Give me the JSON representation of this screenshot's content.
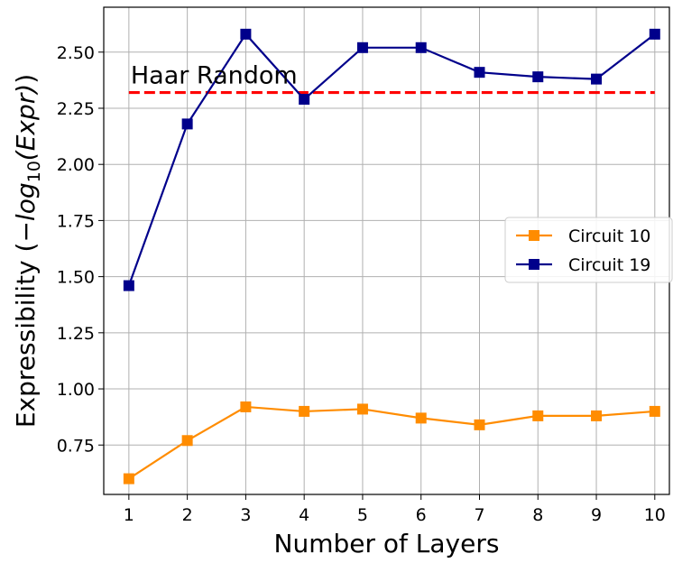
{
  "chart_data": {
    "type": "line",
    "title": "",
    "xlabel": "Number of Layers",
    "ylabel_parts": {
      "prefix": "Expressibility (−",
      "log": "log",
      "sub": "10",
      "arg": "(Expr)",
      "suffix": ")"
    },
    "x": [
      1,
      2,
      3,
      4,
      5,
      6,
      7,
      8,
      9,
      10
    ],
    "xticks": [
      "1",
      "2",
      "3",
      "4",
      "5",
      "6",
      "7",
      "8",
      "9",
      "10"
    ],
    "yticks": [
      "0.75",
      "1.00",
      "1.25",
      "1.50",
      "1.75",
      "2.00",
      "2.25",
      "2.50"
    ],
    "ylim": [
      0.53,
      2.7
    ],
    "xlim": [
      0.57,
      10.25
    ],
    "grid": true,
    "legend_position": "center-right",
    "series": [
      {
        "name": "Circuit 10",
        "color": "#ff8c00",
        "marker": "square",
        "values": [
          0.6,
          0.77,
          0.92,
          0.9,
          0.91,
          0.87,
          0.84,
          0.88,
          0.88,
          0.9
        ]
      },
      {
        "name": "Circuit 19",
        "color": "#00008b",
        "marker": "square",
        "values": [
          1.46,
          2.18,
          2.58,
          2.29,
          2.52,
          2.52,
          2.41,
          2.39,
          2.38,
          2.58
        ]
      }
    ],
    "reference_line": {
      "label": "Haar Random",
      "value": 2.32,
      "color": "#ff0000",
      "style": "dashed"
    }
  }
}
